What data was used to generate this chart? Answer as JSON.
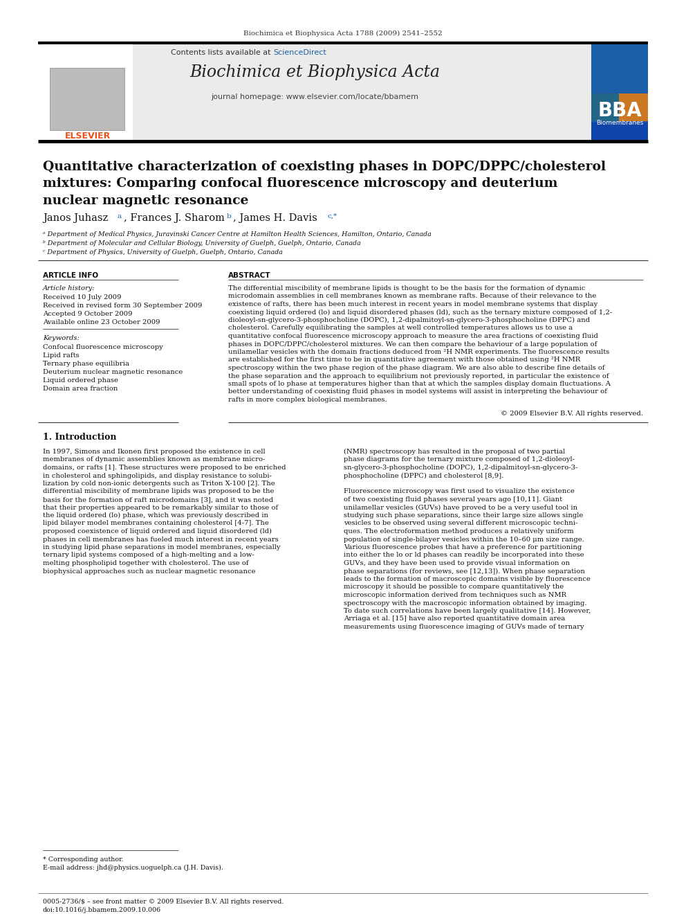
{
  "page_bg": "#ffffff",
  "top_journal_line": "Biochimica et Biophysica Acta 1788 (2009) 2541–2552",
  "sciencedirect_color": "#1a5fa8",
  "bba_box_color": "#1a5fa8",
  "article_title": "Quantitative characterization of coexisting phases in DOPC/DPPC/cholesterol\nmixtures: Comparing confocal fluorescence microscopy and deuterium\nnuclear magnetic resonance",
  "section_article_info": "ARTICLE INFO",
  "section_abstract": "ABSTRACT",
  "article_history_label": "Article history:",
  "received": "Received 10 July 2009",
  "revised": "Received in revised form 30 September 2009",
  "accepted": "Accepted 9 October 2009",
  "available": "Available online 23 October 2009",
  "keywords_label": "Keywords:",
  "keywords": [
    "Confocal fluorescence microscopy",
    "Lipid rafts",
    "Ternary phase equilibria",
    "Deuterium nuclear magnetic resonance",
    "Liquid ordered phase",
    "Domain area fraction"
  ],
  "copyright": "© 2009 Elsevier B.V. All rights reserved.",
  "section1_title": "1. Introduction",
  "footnote_corresponding": "* Corresponding author.",
  "footnote_email": "E-mail address: jhd@physics.uoguelph.ca (J.H. Davis).",
  "footer_issn": "0005-2736/$ – see front matter © 2009 Elsevier B.V. All rights reserved.",
  "footer_doi": "doi:10.1016/j.bbamem.2009.10.006",
  "elsevier_color": "#e8521a",
  "link_color": "#1a5fa8",
  "affil_a": "ᵃ Department of Medical Physics, Juravinski Cancer Centre at Hamilton Health Sciences, Hamilton, Ontario, Canada",
  "affil_b": "ᵇ Department of Molecular and Cellular Biology, University of Guelph, Guelph, Ontario, Canada",
  "affil_c": "ᶜ Department of Physics, University of Guelph, Guelph, Ontario, Canada",
  "abstract_lines": [
    "The differential miscibility of membrane lipids is thought to be the basis for the formation of dynamic",
    "microdomain assemblies in cell membranes known as membrane rafts. Because of their relevance to the",
    "existence of rafts, there has been much interest in recent years in model membrane systems that display",
    "coexisting liquid ordered (lo) and liquid disordered phases (ld), such as the ternary mixture composed of 1,2-",
    "dioleoyl-sn-glycero-3-phosphocholine (DOPC), 1,2-dipalmitoyl-sn-glycero-3-phosphocholine (DPPC) and",
    "cholesterol. Carefully equilibrating the samples at well controlled temperatures allows us to use a",
    "quantitative confocal fluorescence microscopy approach to measure the area fractions of coexisting fluid",
    "phases in DOPC/DPPC/cholesterol mixtures. We can then compare the behaviour of a large population of",
    "unilamellar vesicles with the domain fractions deduced from ²H NMR experiments. The fluorescence results",
    "are established for the first time to be in quantitative agreement with those obtained using ²H NMR",
    "spectroscopy within the two phase region of the phase diagram. We are also able to describe fine details of",
    "the phase separation and the approach to equilibrium not previously reported, in particular the existence of",
    "small spots of lo phase at temperatures higher than that at which the samples display domain fluctuations. A",
    "better understanding of coexisting fluid phases in model systems will assist in interpreting the behaviour of",
    "rafts in more complex biological membranes."
  ],
  "intro_col1_lines": [
    "In 1997, Simons and Ikonen first proposed the existence in cell",
    "membranes of dynamic assemblies known as membrane micro-",
    "domains, or rafts [1]. These structures were proposed to be enriched",
    "in cholesterol and sphingolipids, and display resistance to solubi-",
    "lization by cold non-ionic detergents such as Triton X-100 [2]. The",
    "differential miscibility of membrane lipids was proposed to be the",
    "basis for the formation of raft microdomains [3], and it was noted",
    "that their properties appeared to be remarkably similar to those of",
    "the liquid ordered (lo) phase, which was previously described in",
    "lipid bilayer model membranes containing cholesterol [4-7]. The",
    "proposed coexistence of liquid ordered and liquid disordered (ld)",
    "phases in cell membranes has fueled much interest in recent years",
    "in studying lipid phase separations in model membranes, especially",
    "ternary lipid systems composed of a high-melting and a low-",
    "melting phospholipid together with cholesterol. The use of",
    "biophysical approaches such as nuclear magnetic resonance"
  ],
  "intro_col2_lines": [
    "(NMR) spectroscopy has resulted in the proposal of two partial",
    "phase diagrams for the ternary mixture composed of 1,2-dioleoyl-",
    "sn-glycero-3-phosphocholine (DOPC), 1,2-dipalmitoyl-sn-glycero-3-",
    "phosphocholine (DPPC) and cholesterol [8,9].",
    "",
    "Fluorescence microscopy was first used to visualize the existence",
    "of two coexisting fluid phases several years ago [10,11]. Giant",
    "unilamellar vesicles (GUVs) have proved to be a very useful tool in",
    "studying such phase separations, since their large size allows single",
    "vesicles to be observed using several different microscopic techni-",
    "ques. The electroformation method produces a relatively uniform",
    "population of single-bilayer vesicles within the 10–60 μm size range.",
    "Various fluorescence probes that have a preference for partitioning",
    "into either the lo or ld phases can readily be incorporated into these",
    "GUVs, and they have been used to provide visual information on",
    "phase separations (for reviews, see [12,13]). When phase separation",
    "leads to the formation of macroscopic domains visible by fluorescence",
    "microscopy it should be possible to compare quantitatively the",
    "microscopic information derived from techniques such as NMR",
    "spectroscopy with the macroscopic information obtained by imaging.",
    "To date such correlations have been largely qualitative [14]. However,",
    "Arriaga et al. [15] have also reported quantitative domain area",
    "measurements using fluorescence imaging of GUVs made of ternary"
  ]
}
